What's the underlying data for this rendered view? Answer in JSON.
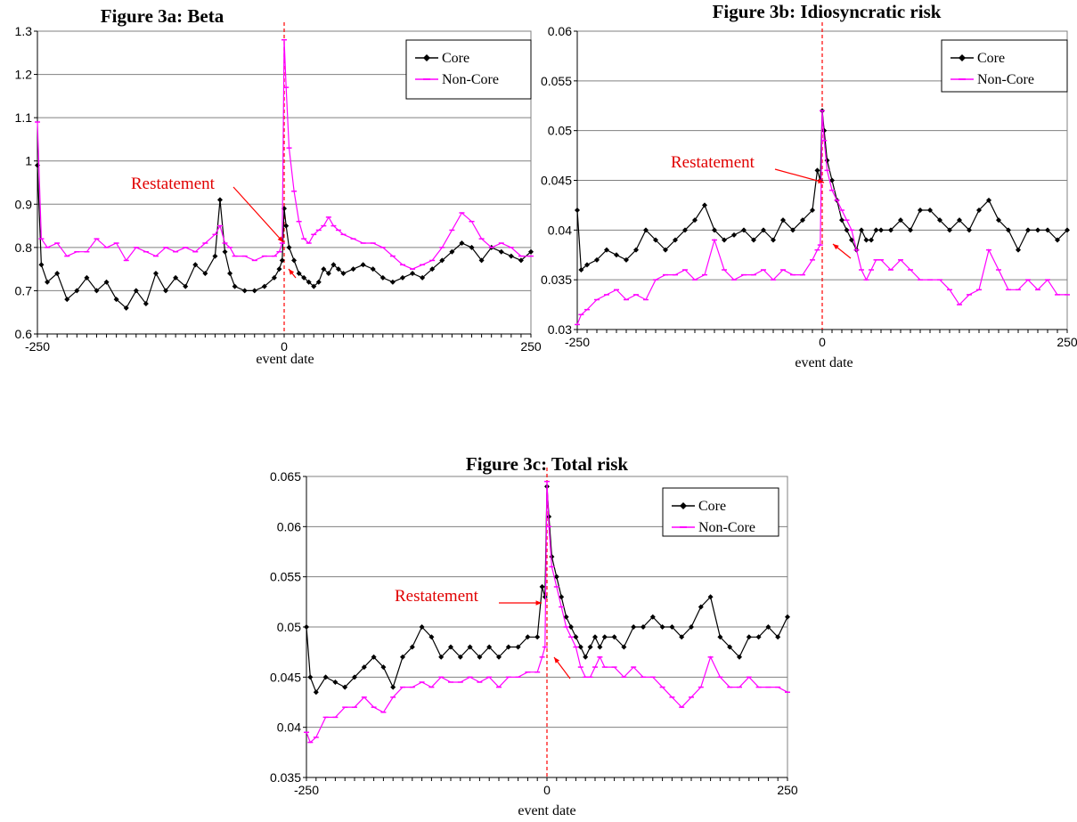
{
  "chart_data": [
    {
      "type": "line",
      "title": "Figure 3a: Beta",
      "xlabel": "event date",
      "ylabel": "",
      "xlim": [
        -250,
        250
      ],
      "ylim": [
        0.6,
        1.3
      ],
      "y_ticks": [
        "0.6",
        "0.7",
        "0.8",
        "0.9",
        "1",
        "1.1",
        "1.2",
        "1.3"
      ],
      "x_ticks": [
        "-250",
        "0",
        "250"
      ],
      "grid": "horizontal",
      "legend_position": "top-right",
      "event_line_x": 0,
      "annotation": {
        "text": "Restatement"
      },
      "series": [
        {
          "name": "Core",
          "color": "#000000",
          "marker": "diamond",
          "x": [
            -250,
            -246,
            -240,
            -230,
            -220,
            -210,
            -200,
            -190,
            -180,
            -170,
            -160,
            -150,
            -140,
            -130,
            -120,
            -110,
            -100,
            -90,
            -80,
            -70,
            -65,
            -60,
            -55,
            -50,
            -40,
            -30,
            -20,
            -10,
            -5,
            -2,
            0,
            2,
            5,
            10,
            15,
            20,
            25,
            30,
            35,
            40,
            45,
            50,
            55,
            60,
            70,
            80,
            90,
            100,
            110,
            120,
            130,
            140,
            150,
            160,
            170,
            180,
            190,
            200,
            210,
            220,
            230,
            240,
            250
          ],
          "y": [
            0.99,
            0.76,
            0.72,
            0.74,
            0.68,
            0.7,
            0.73,
            0.7,
            0.72,
            0.68,
            0.66,
            0.7,
            0.67,
            0.74,
            0.7,
            0.73,
            0.71,
            0.76,
            0.74,
            0.78,
            0.91,
            0.79,
            0.74,
            0.71,
            0.7,
            0.7,
            0.71,
            0.73,
            0.75,
            0.77,
            0.89,
            0.85,
            0.8,
            0.77,
            0.74,
            0.73,
            0.72,
            0.71,
            0.72,
            0.75,
            0.74,
            0.76,
            0.75,
            0.74,
            0.75,
            0.76,
            0.75,
            0.73,
            0.72,
            0.73,
            0.74,
            0.73,
            0.75,
            0.77,
            0.79,
            0.81,
            0.8,
            0.77,
            0.8,
            0.79,
            0.78,
            0.77,
            0.79
          ]
        },
        {
          "name": "Non-Core",
          "color": "#ff00ff",
          "marker": "dash",
          "x": [
            -250,
            -246,
            -240,
            -230,
            -220,
            -210,
            -200,
            -190,
            -180,
            -170,
            -160,
            -150,
            -140,
            -130,
            -120,
            -110,
            -100,
            -90,
            -80,
            -70,
            -65,
            -60,
            -55,
            -50,
            -40,
            -30,
            -20,
            -10,
            -5,
            -2,
            0,
            2,
            5,
            10,
            15,
            20,
            25,
            30,
            35,
            40,
            45,
            50,
            55,
            60,
            70,
            80,
            90,
            100,
            110,
            120,
            130,
            140,
            150,
            160,
            170,
            180,
            190,
            200,
            210,
            220,
            230,
            240,
            250
          ],
          "y": [
            1.09,
            0.82,
            0.8,
            0.81,
            0.78,
            0.79,
            0.79,
            0.82,
            0.8,
            0.81,
            0.77,
            0.8,
            0.79,
            0.78,
            0.8,
            0.79,
            0.8,
            0.79,
            0.81,
            0.83,
            0.85,
            0.81,
            0.8,
            0.78,
            0.78,
            0.77,
            0.78,
            0.78,
            0.79,
            0.81,
            1.28,
            1.17,
            1.03,
            0.93,
            0.86,
            0.82,
            0.81,
            0.83,
            0.84,
            0.85,
            0.87,
            0.85,
            0.84,
            0.83,
            0.82,
            0.81,
            0.81,
            0.8,
            0.78,
            0.76,
            0.75,
            0.76,
            0.77,
            0.8,
            0.84,
            0.88,
            0.86,
            0.82,
            0.8,
            0.81,
            0.8,
            0.78,
            0.78
          ]
        }
      ]
    },
    {
      "type": "line",
      "title": "Figure 3b: Idiosyncratic risk",
      "xlabel": "event date",
      "ylabel": "",
      "xlim": [
        -250,
        250
      ],
      "ylim": [
        0.03,
        0.06
      ],
      "y_ticks": [
        "0.03",
        "0.035",
        "0.04",
        "0.045",
        "0.05",
        "0.055",
        "0.06"
      ],
      "x_ticks": [
        "-250",
        "0",
        "250"
      ],
      "grid": "horizontal",
      "legend_position": "top-right",
      "event_line_x": 0,
      "annotation": {
        "text": "Restatement"
      },
      "series": [
        {
          "name": "Core",
          "color": "#000000",
          "marker": "diamond",
          "x": [
            -250,
            -246,
            -240,
            -230,
            -220,
            -210,
            -200,
            -190,
            -180,
            -170,
            -160,
            -150,
            -140,
            -130,
            -120,
            -110,
            -100,
            -90,
            -80,
            -70,
            -60,
            -50,
            -40,
            -30,
            -20,
            -10,
            -5,
            -2,
            0,
            2,
            5,
            10,
            15,
            20,
            25,
            30,
            35,
            40,
            45,
            50,
            55,
            60,
            70,
            80,
            90,
            100,
            110,
            120,
            130,
            140,
            150,
            160,
            170,
            180,
            190,
            200,
            210,
            220,
            230,
            240,
            250
          ],
          "y": [
            0.042,
            0.036,
            0.0365,
            0.037,
            0.038,
            0.0375,
            0.037,
            0.038,
            0.04,
            0.039,
            0.038,
            0.039,
            0.04,
            0.041,
            0.0425,
            0.04,
            0.039,
            0.0395,
            0.04,
            0.039,
            0.04,
            0.039,
            0.041,
            0.04,
            0.041,
            0.042,
            0.046,
            0.045,
            0.052,
            0.05,
            0.047,
            0.045,
            0.043,
            0.041,
            0.04,
            0.039,
            0.038,
            0.04,
            0.039,
            0.039,
            0.04,
            0.04,
            0.04,
            0.041,
            0.04,
            0.042,
            0.042,
            0.041,
            0.04,
            0.041,
            0.04,
            0.042,
            0.043,
            0.041,
            0.04,
            0.038,
            0.04,
            0.04,
            0.04,
            0.039,
            0.04
          ]
        },
        {
          "name": "Non-Core",
          "color": "#ff00ff",
          "marker": "dash",
          "x": [
            -250,
            -246,
            -240,
            -230,
            -220,
            -210,
            -200,
            -190,
            -180,
            -170,
            -160,
            -150,
            -140,
            -130,
            -120,
            -110,
            -100,
            -90,
            -80,
            -70,
            -60,
            -50,
            -40,
            -30,
            -20,
            -10,
            -5,
            -2,
            0,
            2,
            5,
            10,
            15,
            20,
            25,
            30,
            35,
            40,
            45,
            50,
            55,
            60,
            70,
            80,
            90,
            100,
            110,
            120,
            130,
            140,
            150,
            160,
            170,
            180,
            190,
            200,
            210,
            220,
            230,
            240,
            250
          ],
          "y": [
            0.0305,
            0.0315,
            0.032,
            0.033,
            0.0335,
            0.034,
            0.033,
            0.0335,
            0.033,
            0.035,
            0.0355,
            0.0355,
            0.036,
            0.035,
            0.0355,
            0.039,
            0.036,
            0.035,
            0.0355,
            0.0355,
            0.036,
            0.035,
            0.036,
            0.0355,
            0.0355,
            0.037,
            0.038,
            0.0385,
            0.052,
            0.049,
            0.046,
            0.044,
            0.043,
            0.042,
            0.041,
            0.04,
            0.038,
            0.036,
            0.035,
            0.036,
            0.037,
            0.037,
            0.036,
            0.037,
            0.036,
            0.035,
            0.035,
            0.035,
            0.034,
            0.0325,
            0.0335,
            0.034,
            0.038,
            0.036,
            0.034,
            0.034,
            0.035,
            0.034,
            0.035,
            0.0335,
            0.0335
          ]
        }
      ]
    },
    {
      "type": "line",
      "title": "Figure 3c: Total risk",
      "xlabel": "event date",
      "ylabel": "",
      "xlim": [
        -250,
        250
      ],
      "ylim": [
        0.035,
        0.065
      ],
      "y_ticks": [
        "0.035",
        "0.04",
        "0.045",
        "0.05",
        "0.055",
        "0.06",
        "0.065"
      ],
      "x_ticks": [
        "-250",
        "0",
        "250"
      ],
      "grid": "horizontal",
      "legend_position": "top-right",
      "event_line_x": 0,
      "annotation": {
        "text": "Restatement"
      },
      "series": [
        {
          "name": "Core",
          "color": "#000000",
          "marker": "diamond",
          "x": [
            -250,
            -246,
            -240,
            -230,
            -220,
            -210,
            -200,
            -190,
            -180,
            -170,
            -160,
            -150,
            -140,
            -130,
            -120,
            -110,
            -100,
            -90,
            -80,
            -70,
            -60,
            -50,
            -40,
            -30,
            -20,
            -10,
            -5,
            -2,
            0,
            2,
            5,
            10,
            15,
            20,
            25,
            30,
            35,
            40,
            45,
            50,
            55,
            60,
            70,
            80,
            90,
            100,
            110,
            120,
            130,
            140,
            150,
            160,
            170,
            180,
            190,
            200,
            210,
            220,
            230,
            240,
            250
          ],
          "y": [
            0.05,
            0.045,
            0.0435,
            0.045,
            0.0445,
            0.044,
            0.045,
            0.046,
            0.047,
            0.046,
            0.044,
            0.047,
            0.048,
            0.05,
            0.049,
            0.047,
            0.048,
            0.047,
            0.048,
            0.047,
            0.048,
            0.047,
            0.048,
            0.048,
            0.049,
            0.049,
            0.054,
            0.053,
            0.064,
            0.061,
            0.057,
            0.055,
            0.053,
            0.051,
            0.05,
            0.049,
            0.048,
            0.047,
            0.048,
            0.049,
            0.048,
            0.049,
            0.049,
            0.048,
            0.05,
            0.05,
            0.051,
            0.05,
            0.05,
            0.049,
            0.05,
            0.052,
            0.053,
            0.049,
            0.048,
            0.047,
            0.049,
            0.049,
            0.05,
            0.049,
            0.051
          ]
        },
        {
          "name": "Non-Core",
          "color": "#ff00ff",
          "marker": "dash",
          "x": [
            -250,
            -246,
            -240,
            -230,
            -220,
            -210,
            -200,
            -190,
            -180,
            -170,
            -160,
            -150,
            -140,
            -130,
            -120,
            -110,
            -100,
            -90,
            -80,
            -70,
            -60,
            -50,
            -40,
            -30,
            -20,
            -10,
            -5,
            -2,
            0,
            2,
            5,
            10,
            15,
            20,
            25,
            30,
            35,
            40,
            45,
            50,
            55,
            60,
            70,
            80,
            90,
            100,
            110,
            120,
            130,
            140,
            150,
            160,
            170,
            180,
            190,
            200,
            210,
            220,
            230,
            240,
            250
          ],
          "y": [
            0.0395,
            0.0385,
            0.039,
            0.041,
            0.041,
            0.042,
            0.042,
            0.043,
            0.042,
            0.0415,
            0.043,
            0.044,
            0.044,
            0.0445,
            0.044,
            0.045,
            0.0445,
            0.0445,
            0.045,
            0.0445,
            0.045,
            0.044,
            0.045,
            0.045,
            0.0455,
            0.0455,
            0.047,
            0.048,
            0.0645,
            0.06,
            0.056,
            0.054,
            0.052,
            0.05,
            0.049,
            0.048,
            0.046,
            0.045,
            0.045,
            0.046,
            0.047,
            0.046,
            0.046,
            0.045,
            0.046,
            0.045,
            0.045,
            0.044,
            0.043,
            0.042,
            0.043,
            0.044,
            0.047,
            0.045,
            0.044,
            0.044,
            0.045,
            0.044,
            0.044,
            0.044,
            0.0435
          ]
        }
      ]
    }
  ]
}
